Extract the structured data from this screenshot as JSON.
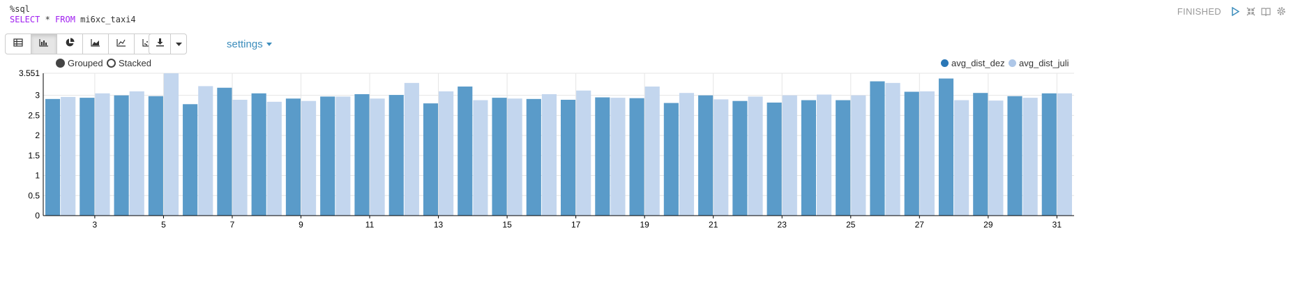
{
  "paragraph": {
    "code_line1": "%sql",
    "code_kw1": "SELECT",
    "code_mid": " * ",
    "code_kw2": "FROM",
    "code_table": " mi6xc_taxi4",
    "status": "FINISHED"
  },
  "toolbar": {
    "view_buttons": [
      {
        "icon": "table-icon"
      },
      {
        "icon": "bar-chart-icon",
        "active": true
      },
      {
        "icon": "pie-chart-icon"
      },
      {
        "icon": "area-chart-icon"
      },
      {
        "icon": "line-chart-icon"
      },
      {
        "icon": "scatter-chart-icon"
      }
    ],
    "download_icon": "download-icon",
    "settings_label": "settings"
  },
  "controls": {
    "grouped_label": "Grouped",
    "stacked_label": "Stacked",
    "selected": "Grouped"
  },
  "colors": {
    "series1": "#5a9bc9",
    "series1_legend": "#2a77b6",
    "series2": "#c3d6ee",
    "series2_legend": "#aec7e8",
    "link": "#3c8dbc"
  },
  "chart_data": {
    "type": "bar",
    "mode": "grouped",
    "ylim": [
      0,
      3.551
    ],
    "yticks": [
      "0",
      "0.5",
      "1",
      "1.5",
      "2",
      "2.5",
      "3",
      "3.551"
    ],
    "categories": [
      2,
      3,
      4,
      5,
      6,
      7,
      8,
      9,
      10,
      11,
      12,
      13,
      14,
      15,
      16,
      17,
      18,
      19,
      20,
      21,
      22,
      23,
      24,
      25,
      26,
      27,
      28,
      29,
      30,
      31
    ],
    "xticks_shown": [
      3,
      5,
      7,
      9,
      11,
      13,
      15,
      17,
      19,
      21,
      23,
      25,
      27,
      29,
      31
    ],
    "grid": true,
    "legend_position": "top-right",
    "series": [
      {
        "name": "avg_dist_dez",
        "values": [
          2.91,
          2.94,
          3.0,
          2.98,
          2.78,
          3.19,
          3.05,
          2.92,
          2.97,
          3.03,
          3.01,
          2.8,
          3.22,
          2.94,
          2.91,
          2.89,
          2.95,
          2.93,
          2.81,
          3.0,
          2.86,
          2.82,
          2.88,
          2.88,
          3.35,
          3.09,
          3.42,
          3.06,
          2.98,
          3.05
        ]
      },
      {
        "name": "avg_dist_juli",
        "values": [
          2.96,
          3.05,
          3.1,
          3.551,
          3.23,
          2.89,
          2.84,
          2.86,
          2.97,
          2.92,
          3.31,
          3.1,
          2.88,
          2.92,
          3.03,
          3.12,
          2.94,
          3.22,
          3.06,
          2.9,
          2.97,
          3.0,
          3.02,
          3.0,
          3.31,
          3.1,
          2.88,
          2.87,
          2.94,
          3.05
        ]
      }
    ]
  }
}
